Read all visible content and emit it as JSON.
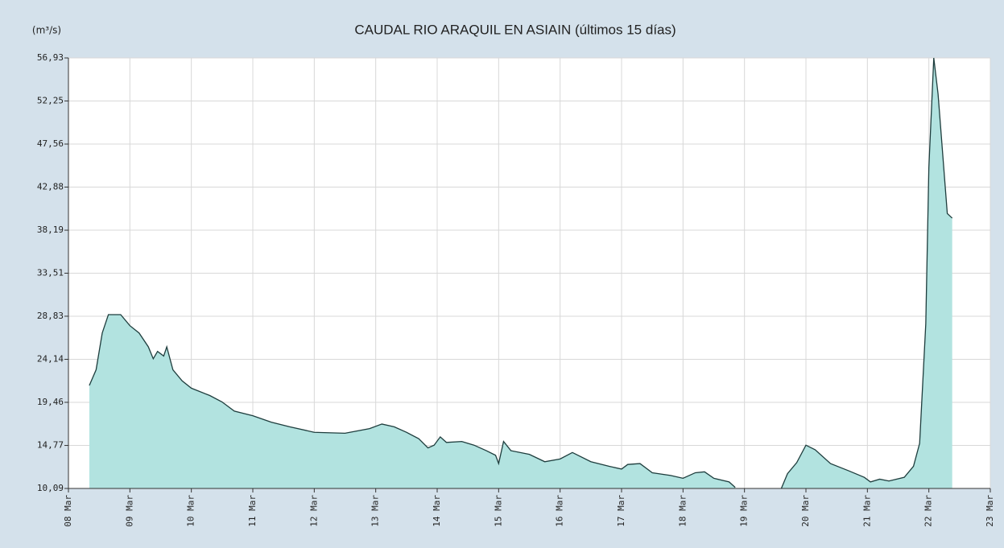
{
  "chart_data": {
    "type": "area",
    "title": "CAUDAL RIO ARAQUIL EN ASIAIN  (últimos 15 días)",
    "y_label": "(m³/s)",
    "color": "#b2e3e0",
    "line_color": "#1e3d3d",
    "grid": true,
    "xlim": [
      8,
      23
    ],
    "xticks": [
      {
        "value": 8,
        "label": "08 Mar"
      },
      {
        "value": 9,
        "label": "09 Mar"
      },
      {
        "value": 10,
        "label": "10 Mar"
      },
      {
        "value": 11,
        "label": "11 Mar"
      },
      {
        "value": 12,
        "label": "12 Mar"
      },
      {
        "value": 13,
        "label": "13 Mar"
      },
      {
        "value": 14,
        "label": "14 Mar"
      },
      {
        "value": 15,
        "label": "15 Mar"
      },
      {
        "value": 16,
        "label": "16 Mar"
      },
      {
        "value": 17,
        "label": "17 Mar"
      },
      {
        "value": 18,
        "label": "18 Mar"
      },
      {
        "value": 19,
        "label": "19 Mar"
      },
      {
        "value": 20,
        "label": "20 Mar"
      },
      {
        "value": 21,
        "label": "21 Mar"
      },
      {
        "value": 22,
        "label": "22 Mar"
      },
      {
        "value": 23,
        "label": "23 Mar"
      }
    ],
    "ylim": [
      10.09,
      56.93
    ],
    "yticks": [
      {
        "value": 10.09,
        "label": "10,09"
      },
      {
        "value": 14.77,
        "label": "14,77"
      },
      {
        "value": 19.46,
        "label": "19,46"
      },
      {
        "value": 24.14,
        "label": "24,14"
      },
      {
        "value": 28.83,
        "label": "28,83"
      },
      {
        "value": 33.51,
        "label": "33,51"
      },
      {
        "value": 38.19,
        "label": "38,19"
      },
      {
        "value": 42.88,
        "label": "42,88"
      },
      {
        "value": 47.56,
        "label": "47,56"
      },
      {
        "value": 52.25,
        "label": "52,25"
      },
      {
        "value": 56.93,
        "label": "56,93"
      }
    ],
    "x": [
      8.34,
      8.45,
      8.55,
      8.65,
      8.85,
      9.0,
      9.15,
      9.3,
      9.38,
      9.45,
      9.55,
      9.6,
      9.7,
      9.85,
      10.0,
      10.3,
      10.5,
      10.7,
      11.0,
      11.3,
      11.6,
      12.0,
      12.5,
      12.9,
      13.1,
      13.3,
      13.5,
      13.7,
      13.85,
      13.95,
      14.05,
      14.15,
      14.4,
      14.6,
      14.8,
      14.95,
      15.0,
      15.08,
      15.2,
      15.5,
      15.75,
      16.0,
      16.2,
      16.5,
      16.8,
      17.0,
      17.1,
      17.3,
      17.5,
      17.8,
      18.0,
      18.2,
      18.35,
      18.5,
      18.75,
      18.85,
      19.2,
      19.6,
      19.7,
      19.85,
      20.0,
      20.15,
      20.4,
      20.7,
      20.95,
      21.05,
      21.2,
      21.35,
      21.6,
      21.75,
      21.85,
      21.95,
      22.0,
      22.08,
      22.15,
      22.3,
      22.38
    ],
    "values": [
      21.3,
      23,
      27,
      29,
      29,
      27.8,
      27,
      25.5,
      24.2,
      25,
      24.5,
      25.5,
      23,
      21.8,
      21,
      20.2,
      19.5,
      18.5,
      18,
      17.3,
      16.8,
      16.2,
      16.1,
      16.6,
      17.1,
      16.8,
      16.2,
      15.5,
      14.5,
      14.8,
      15.7,
      15.1,
      15.2,
      14.8,
      14.2,
      13.7,
      12.8,
      15.2,
      14.2,
      13.8,
      13,
      13.3,
      14,
      13,
      12.5,
      12.2,
      12.7,
      12.8,
      11.8,
      11.5,
      11.2,
      11.8,
      11.9,
      11.2,
      10.8,
      10.2,
      null,
      10.1,
      11.7,
      12.9,
      14.8,
      14.3,
      12.8,
      12,
      11.3,
      10.8,
      11.1,
      10.9,
      11.3,
      12.5,
      15,
      28,
      45,
      57,
      53,
      40,
      39.5
    ]
  }
}
